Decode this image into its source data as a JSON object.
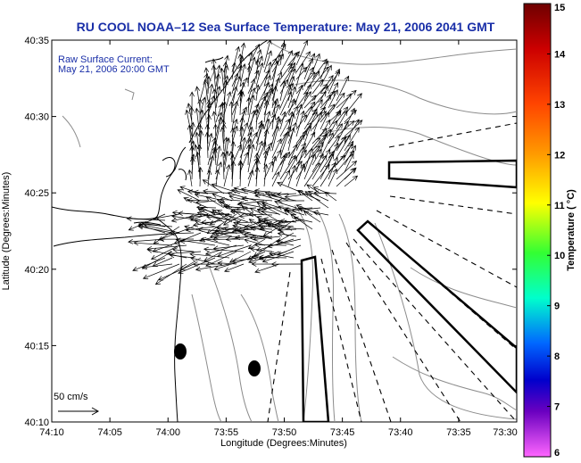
{
  "map": {
    "title": "RU COOL  NOAA–12  Sea Surface Temperature:  May 21, 2006 2041 GMT",
    "annotation_line1": "Raw Surface Current:",
    "annotation_line2": "May 21, 2006 20:00 GMT",
    "x_axis_label": "Longitude (Degrees:Minutes)",
    "y_axis_label": "Latitude (Degrees:Minutes)",
    "x_ticks": [
      "74:10",
      "74:05",
      "74:00",
      "73:55",
      "73:50",
      "73:45",
      "73:40",
      "73:35",
      "73:30"
    ],
    "y_ticks": [
      "40:35",
      "40:30",
      "40:25",
      "40:20",
      "40:15",
      "40:10"
    ],
    "scale_label": "50 cm/s"
  },
  "colorbar": {
    "label": "Temperature ( °C)",
    "min": 6,
    "max": 15,
    "ticks": [
      "15",
      "14",
      "13",
      "12",
      "11",
      "10",
      "9",
      "8",
      "7",
      "6"
    ],
    "colors": [
      "#8b0000",
      "#ff0000",
      "#ff8c00",
      "#ffff00",
      "#00ff00",
      "#00ffff",
      "#0000ff",
      "#7b00c8",
      "#ff66ff"
    ]
  }
}
